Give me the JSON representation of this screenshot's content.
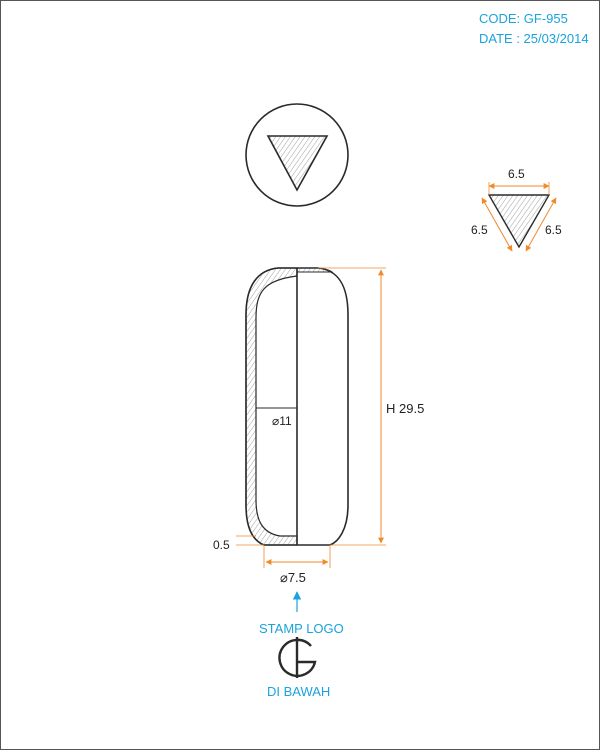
{
  "header": {
    "code": "CODE: GF-955",
    "date": "DATE : 25/03/2014"
  },
  "dimensions": {
    "side": "6.5",
    "side_left": "6.5",
    "side_right": "6.5",
    "height": "H 29.5",
    "inner_diameter": "⌀11",
    "wall": "0.5",
    "base_diameter": "⌀7.5"
  },
  "annotations": {
    "stamp_logo": "STAMP LOGO",
    "under": "DI BAWAH"
  },
  "colors": {
    "line": "#2a2a2a",
    "dimension": "#f08a2c",
    "annotation": "#1aa3dd",
    "hatch": "#888888"
  }
}
